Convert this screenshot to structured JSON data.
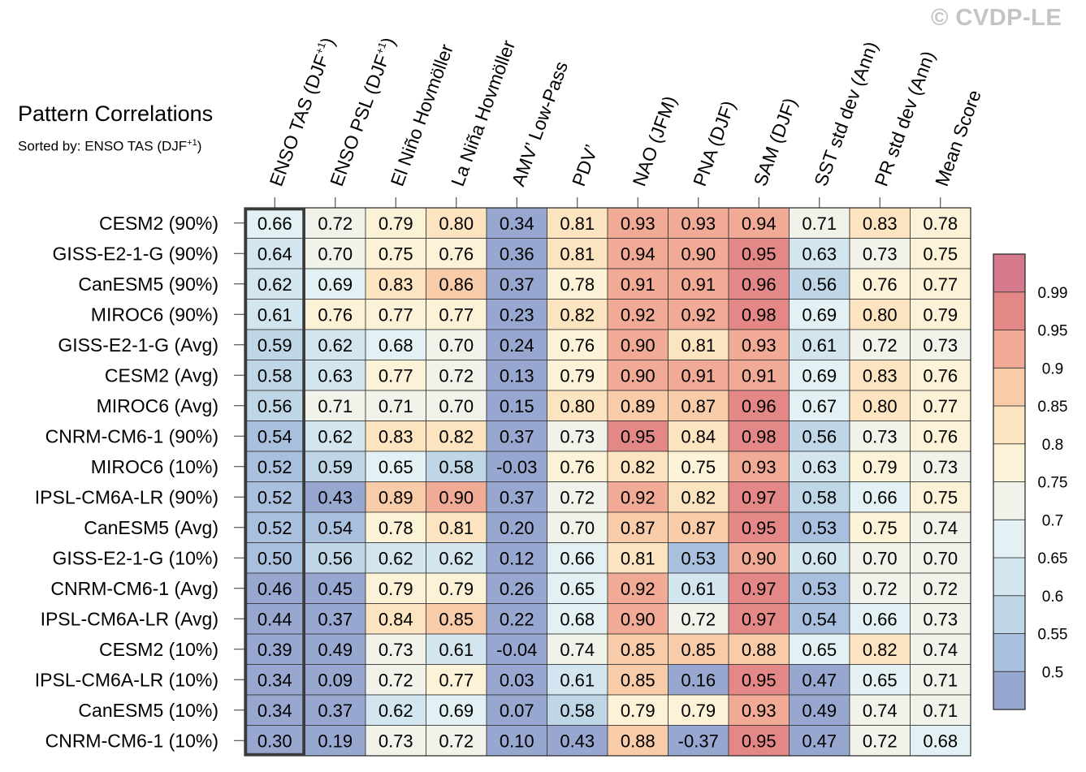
{
  "watermark": "© CVDP-LE",
  "title": "Pattern Correlations",
  "subtitle_prefix": "Sorted by: ENSO TAS (DJF",
  "subtitle_sup": "+1",
  "subtitle_suffix": ")",
  "chart_data": {
    "type": "heatmap",
    "title": "Pattern Correlations",
    "sorted_by": "ENSO TAS (DJF+1)",
    "columns": [
      {
        "label": "ENSO TAS (DJF",
        "sup": "+1",
        "suffix": ")"
      },
      {
        "label": "ENSO PSL (DJF",
        "sup": "+1",
        "suffix": ")"
      },
      {
        "label": "El Niño Hovmöller",
        "sup": "",
        "suffix": ""
      },
      {
        "label": "La Niña Hovmöller",
        "sup": "",
        "suffix": ""
      },
      {
        "label": "AMV’ Low-Pass",
        "sup": "",
        "suffix": ""
      },
      {
        "label": "PDV’",
        "sup": "",
        "suffix": ""
      },
      {
        "label": "NAO (JFM)",
        "sup": "",
        "suffix": ""
      },
      {
        "label": "PNA (DJF)",
        "sup": "",
        "suffix": ""
      },
      {
        "label": "SAM (DJF)",
        "sup": "",
        "suffix": ""
      },
      {
        "label": "SST std dev (Ann)",
        "sup": "",
        "suffix": ""
      },
      {
        "label": "PR std dev (Ann)",
        "sup": "",
        "suffix": ""
      },
      {
        "label": "Mean Score",
        "sup": "",
        "suffix": ""
      }
    ],
    "rows": [
      "CESM2 (90%)",
      "GISS-E2-1-G (90%)",
      "CanESM5 (90%)",
      "MIROC6 (90%)",
      "GISS-E2-1-G (Avg)",
      "CESM2 (Avg)",
      "MIROC6 (Avg)",
      "CNRM-CM6-1 (90%)",
      "MIROC6 (10%)",
      "IPSL-CM6A-LR (90%)",
      "CanESM5 (Avg)",
      "GISS-E2-1-G (10%)",
      "CNRM-CM6-1 (Avg)",
      "IPSL-CM6A-LR (Avg)",
      "CESM2 (10%)",
      "IPSL-CM6A-LR (10%)",
      "CanESM5 (10%)",
      "CNRM-CM6-1 (10%)"
    ],
    "values": [
      [
        "0.66",
        "0.72",
        "0.79",
        "0.80",
        "0.34",
        "0.81",
        "0.93",
        "0.93",
        "0.94",
        "0.71",
        "0.83",
        "0.78"
      ],
      [
        "0.64",
        "0.70",
        "0.75",
        "0.76",
        "0.36",
        "0.81",
        "0.94",
        "0.90",
        "0.95",
        "0.63",
        "0.73",
        "0.75"
      ],
      [
        "0.62",
        "0.69",
        "0.83",
        "0.86",
        "0.37",
        "0.78",
        "0.91",
        "0.91",
        "0.96",
        "0.56",
        "0.76",
        "0.77"
      ],
      [
        "0.61",
        "0.76",
        "0.77",
        "0.77",
        "0.23",
        "0.82",
        "0.92",
        "0.92",
        "0.98",
        "0.69",
        "0.80",
        "0.79"
      ],
      [
        "0.59",
        "0.62",
        "0.68",
        "0.70",
        "0.24",
        "0.76",
        "0.90",
        "0.81",
        "0.93",
        "0.61",
        "0.72",
        "0.73"
      ],
      [
        "0.58",
        "0.63",
        "0.77",
        "0.72",
        "0.13",
        "0.79",
        "0.90",
        "0.91",
        "0.91",
        "0.69",
        "0.83",
        "0.76"
      ],
      [
        "0.56",
        "0.71",
        "0.71",
        "0.70",
        "0.15",
        "0.80",
        "0.89",
        "0.87",
        "0.96",
        "0.67",
        "0.80",
        "0.77"
      ],
      [
        "0.54",
        "0.62",
        "0.83",
        "0.82",
        "0.37",
        "0.73",
        "0.95",
        "0.84",
        "0.98",
        "0.56",
        "0.73",
        "0.76"
      ],
      [
        "0.52",
        "0.59",
        "0.65",
        "0.58",
        "-0.03",
        "0.76",
        "0.82",
        "0.75",
        "0.93",
        "0.63",
        "0.79",
        "0.73"
      ],
      [
        "0.52",
        "0.43",
        "0.89",
        "0.90",
        "0.37",
        "0.72",
        "0.92",
        "0.82",
        "0.97",
        "0.58",
        "0.66",
        "0.75"
      ],
      [
        "0.52",
        "0.54",
        "0.78",
        "0.81",
        "0.20",
        "0.70",
        "0.87",
        "0.87",
        "0.95",
        "0.53",
        "0.75",
        "0.74"
      ],
      [
        "0.50",
        "0.56",
        "0.62",
        "0.62",
        "0.12",
        "0.66",
        "0.81",
        "0.53",
        "0.90",
        "0.60",
        "0.70",
        "0.70"
      ],
      [
        "0.46",
        "0.45",
        "0.79",
        "0.79",
        "0.26",
        "0.65",
        "0.92",
        "0.61",
        "0.97",
        "0.53",
        "0.72",
        "0.72"
      ],
      [
        "0.44",
        "0.37",
        "0.84",
        "0.85",
        "0.22",
        "0.68",
        "0.90",
        "0.72",
        "0.97",
        "0.54",
        "0.66",
        "0.73"
      ],
      [
        "0.39",
        "0.49",
        "0.73",
        "0.61",
        "-0.04",
        "0.74",
        "0.85",
        "0.85",
        "0.88",
        "0.65",
        "0.82",
        "0.74"
      ],
      [
        "0.34",
        "0.09",
        "0.72",
        "0.77",
        "0.03",
        "0.61",
        "0.85",
        "0.16",
        "0.95",
        "0.47",
        "0.65",
        "0.71"
      ],
      [
        "0.34",
        "0.37",
        "0.62",
        "0.69",
        "0.07",
        "0.58",
        "0.79",
        "0.79",
        "0.93",
        "0.49",
        "0.74",
        "0.71"
      ],
      [
        "0.30",
        "0.19",
        "0.73",
        "0.72",
        "0.10",
        "0.43",
        "0.88",
        "-0.37",
        "0.95",
        "0.47",
        "0.72",
        "0.68"
      ]
    ],
    "highlighted_column": 0,
    "colorbar": {
      "thresholds": [
        0.5,
        0.55,
        0.6,
        0.65,
        0.7,
        0.75,
        0.8,
        0.85,
        0.9,
        0.95,
        0.99
      ],
      "labels": [
        "0.5",
        "0.55",
        "0.6",
        "0.65",
        "0.7",
        "0.75",
        "0.8",
        "0.85",
        "0.9",
        "0.95",
        "0.99"
      ],
      "colors": [
        "#97a7d0",
        "#a8bfdd",
        "#bfd6e7",
        "#d3e5ef",
        "#e3f0f4",
        "#f1f2e9",
        "#fcf2d7",
        "#fde4c0",
        "#f8cba9",
        "#f0aa96",
        "#e48887",
        "#d57a8c"
      ]
    }
  }
}
